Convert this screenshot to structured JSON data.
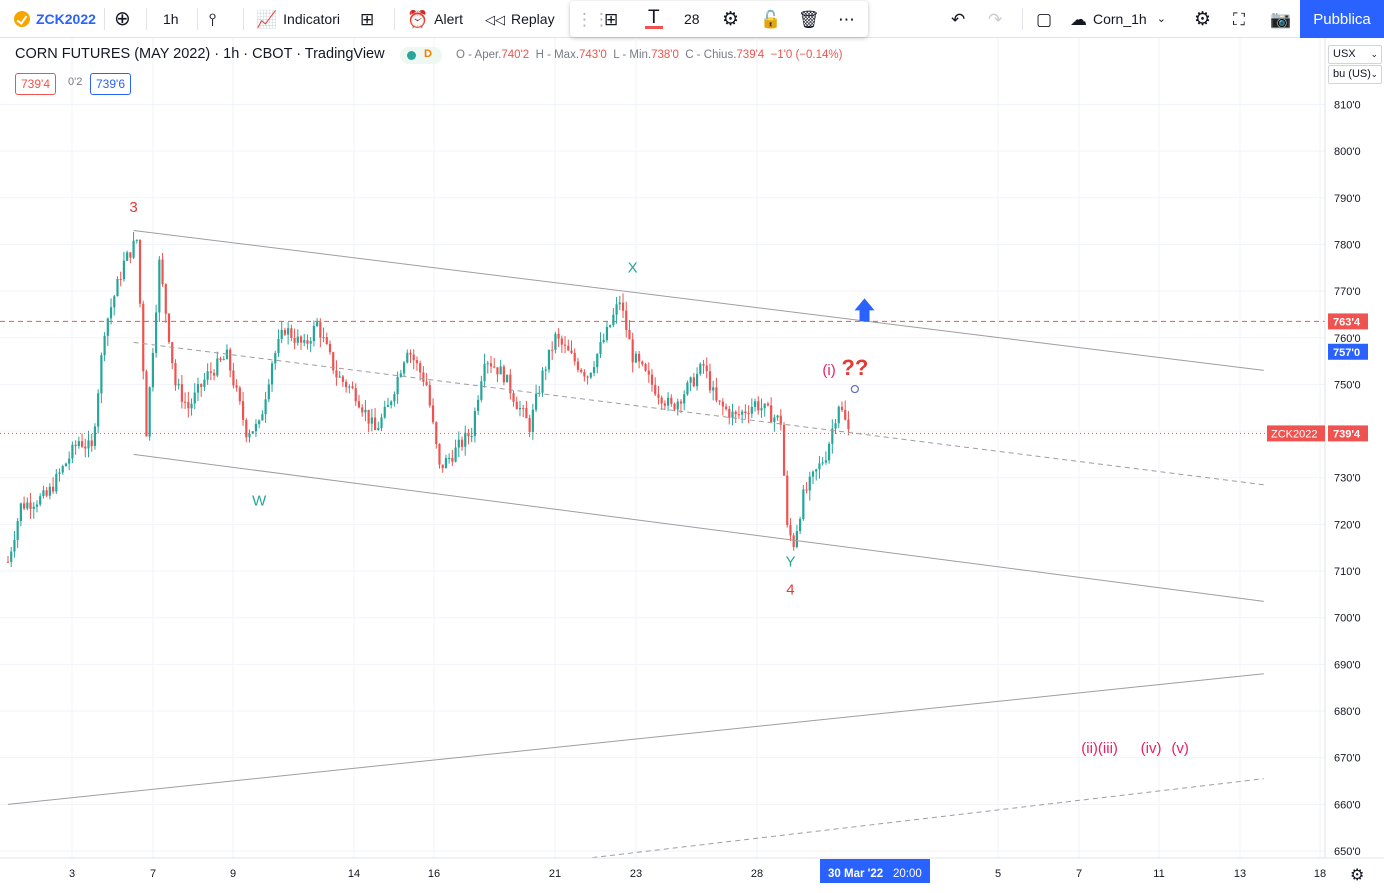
{
  "toolbar": {
    "symbol": "ZCK2022",
    "interval": "1h",
    "indicators": "Indicatori",
    "alert": "Alert",
    "replay": "Replay",
    "font_size": "28",
    "layout_name": "Corn_1h",
    "publish": "Pubblica"
  },
  "legend": {
    "title": "CORN FUTURES (MAY 2022) · 1h · CBOT · TradingView",
    "status_letter": "D",
    "o_label": "O - Aper.",
    "o_value": "740'2",
    "h_label": "H - Max.",
    "h_value": "743'0",
    "l_label": "L - Min.",
    "l_value": "738'0",
    "c_label": "C - Chius.",
    "c_value": "739'4",
    "change": "−1'0 (−0.14%)",
    "bid": "739'4",
    "spread": "0'2",
    "ask": "739'6"
  },
  "axis_controls": {
    "currency": "USX",
    "unit": "bu (US)"
  },
  "colors": {
    "up": "#26a69a",
    "down": "#ef5350",
    "accent": "#2962ff",
    "wave_red": "#e53935",
    "wave_teal": "#26a69a",
    "wave_pink": "#e91e63",
    "trendline": "#9e9e9e"
  },
  "chart_data": {
    "type": "candlestick",
    "symbol": "ZCK2022",
    "y_range": [
      647,
      816
    ],
    "y_ticks": [
      "650'0",
      "660'0",
      "670'0",
      "680'0",
      "690'0",
      "700'0",
      "710'0",
      "720'0",
      "730'0",
      "740'0",
      "750'0",
      "760'0",
      "770'0",
      "780'0",
      "790'0",
      "800'0",
      "810'0"
    ],
    "x_ticks": [
      "3",
      "7",
      "9",
      "14",
      "16",
      "21",
      "23",
      "28",
      "5",
      "7",
      "11",
      "13",
      "18"
    ],
    "crosshair_date": "30 Mar '22",
    "crosshair_time": "20:00",
    "price_labels": [
      {
        "value": 763.5,
        "text": "763'4",
        "color": "#ef5350"
      },
      {
        "value": 757.0,
        "text": "757'0",
        "color": "#2962ff"
      },
      {
        "value": 739.5,
        "text": "739'4",
        "symbol": "ZCK2022",
        "color": "#ef5350"
      }
    ],
    "anchors": [
      {
        "t": 0,
        "p": 712
      },
      {
        "t": 4,
        "p": 724
      },
      {
        "t": 12,
        "p": 726
      },
      {
        "t": 22,
        "p": 738
      },
      {
        "t": 26,
        "p": 736
      },
      {
        "t": 30,
        "p": 762
      },
      {
        "t": 36,
        "p": 776
      },
      {
        "t": 40,
        "p": 781
      },
      {
        "t": 43,
        "p": 740
      },
      {
        "t": 47,
        "p": 776
      },
      {
        "t": 52,
        "p": 750
      },
      {
        "t": 56,
        "p": 745
      },
      {
        "t": 62,
        "p": 752
      },
      {
        "t": 68,
        "p": 756
      },
      {
        "t": 74,
        "p": 740
      },
      {
        "t": 78,
        "p": 741
      },
      {
        "t": 82,
        "p": 755
      },
      {
        "t": 86,
        "p": 762
      },
      {
        "t": 92,
        "p": 758
      },
      {
        "t": 96,
        "p": 763
      },
      {
        "t": 102,
        "p": 752
      },
      {
        "t": 108,
        "p": 748
      },
      {
        "t": 114,
        "p": 740
      },
      {
        "t": 118,
        "p": 745
      },
      {
        "t": 124,
        "p": 758
      },
      {
        "t": 130,
        "p": 750
      },
      {
        "t": 134,
        "p": 732
      },
      {
        "t": 138,
        "p": 735
      },
      {
        "t": 144,
        "p": 740
      },
      {
        "t": 148,
        "p": 756
      },
      {
        "t": 154,
        "p": 752
      },
      {
        "t": 158,
        "p": 746
      },
      {
        "t": 162,
        "p": 741
      },
      {
        "t": 166,
        "p": 752
      },
      {
        "t": 170,
        "p": 760
      },
      {
        "t": 176,
        "p": 755
      },
      {
        "t": 180,
        "p": 752
      },
      {
        "t": 186,
        "p": 761
      },
      {
        "t": 190,
        "p": 768
      },
      {
        "t": 194,
        "p": 756
      },
      {
        "t": 200,
        "p": 750
      },
      {
        "t": 206,
        "p": 745
      },
      {
        "t": 212,
        "p": 750
      },
      {
        "t": 216,
        "p": 754
      },
      {
        "t": 220,
        "p": 746
      },
      {
        "t": 226,
        "p": 743
      },
      {
        "t": 232,
        "p": 746
      },
      {
        "t": 236,
        "p": 744
      },
      {
        "t": 240,
        "p": 742
      },
      {
        "t": 242,
        "p": 719
      },
      {
        "t": 244,
        "p": 716
      },
      {
        "t": 247,
        "p": 726
      },
      {
        "t": 250,
        "p": 730
      },
      {
        "t": 254,
        "p": 735
      },
      {
        "t": 258,
        "p": 746
      },
      {
        "t": 261,
        "p": 740
      }
    ],
    "annotations": [
      {
        "text": "3",
        "t": 39,
        "p": 787,
        "color": "#e53935"
      },
      {
        "text": "W",
        "t": 78,
        "p": 724,
        "color": "#26a69a"
      },
      {
        "text": "X",
        "t": 194,
        "p": 774,
        "color": "#26a69a"
      },
      {
        "text": "Y",
        "t": 243,
        "p": 711,
        "color": "#26a69a"
      },
      {
        "text": "4",
        "t": 243,
        "p": 705,
        "color": "#e53935"
      },
      {
        "text": "(i)",
        "t": 255,
        "p": 752,
        "color": "#e91e63"
      },
      {
        "text": "??",
        "t": 263,
        "p": 752,
        "color": "#e53935"
      },
      {
        "text": "(ii)(iii)",
        "t": 339,
        "p": 671,
        "color": "#e91e63"
      },
      {
        "text": "(iv)",
        "t": 355,
        "p": 671,
        "color": "#e91e63"
      },
      {
        "text": "(v)",
        "t": 364,
        "p": 671,
        "color": "#e91e63"
      }
    ],
    "trendlines": [
      {
        "t1": 39,
        "p1": 783,
        "t2": 390,
        "p2": 753,
        "style": "solid"
      },
      {
        "t1": 39,
        "p1": 735,
        "t2": 390,
        "p2": 703.5,
        "style": "solid"
      },
      {
        "t1": 39,
        "p1": 759,
        "t2": 390,
        "p2": 728.5,
        "style": "dashed"
      },
      {
        "t1": 0,
        "p1": 660,
        "t2": 390,
        "p2": 688,
        "style": "solid"
      },
      {
        "t1": 162,
        "p1": 647,
        "t2": 390,
        "p2": 665.5,
        "style": "dashed"
      }
    ],
    "hlines": [
      {
        "value": 763.5,
        "style": "dashed",
        "color": "#ef5350"
      },
      {
        "value": 739.5,
        "style": "dotted",
        "color": "#ef5350"
      }
    ],
    "arrow": {
      "t": 266,
      "p": 763.5,
      "color": "#2962ff"
    },
    "circle": {
      "t": 263,
      "p": 749
    }
  }
}
